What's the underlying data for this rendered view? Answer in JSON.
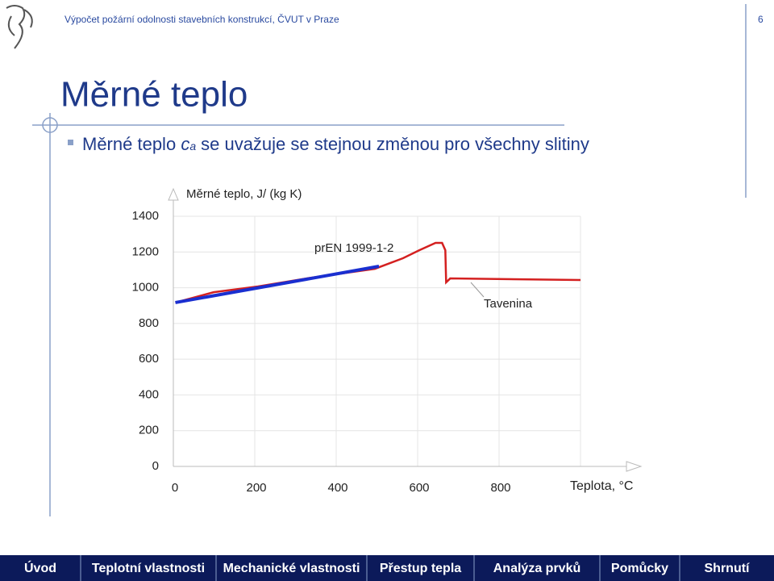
{
  "header": {
    "course": "Výpočet požární odolnosti stavebních konstrukcí, ČVUT v Praze",
    "page": "6"
  },
  "title": "Měrné teplo",
  "bullet": {
    "text_before": "Měrné teplo",
    "symbol": "c",
    "subscript": "a",
    "text_after": "se uvažuje se stejnou změnou pro všechny slitiny"
  },
  "chart_data": {
    "type": "line",
    "y_label": "Měrné teplo, J/ (kg K)",
    "x_label": "Teplota, °C",
    "annotations": [
      "prEN 1999-1-2",
      "Tavenina"
    ],
    "xlim": [
      0,
      1000
    ],
    "xticks": [
      0,
      200,
      400,
      600,
      800
    ],
    "ylim": [
      0,
      1400
    ],
    "yticks": [
      0,
      200,
      400,
      600,
      800,
      1000,
      1200,
      1400
    ],
    "grid": true,
    "series": [
      {
        "color": "#d42020",
        "x": [
          5,
          99,
          208,
          327,
          426,
          495,
          564,
          604,
          644,
          660,
          668,
          670,
          680,
          1000
        ],
        "values": [
          917,
          975,
          1007,
          1052,
          1084,
          1106,
          1165,
          1210,
          1251,
          1251,
          1210,
          1030,
          1052,
          1043
        ]
      },
      {
        "color": "#1a2fd0",
        "x": [
          5,
          505
        ],
        "values": [
          917,
          1120
        ]
      }
    ]
  },
  "nav": [
    "Úvod",
    "Teplotní vlastnosti",
    "Mechanické vlastnosti",
    "Přestup tepla",
    "Analýza prvků",
    "Pomůcky",
    "Shrnutí"
  ]
}
